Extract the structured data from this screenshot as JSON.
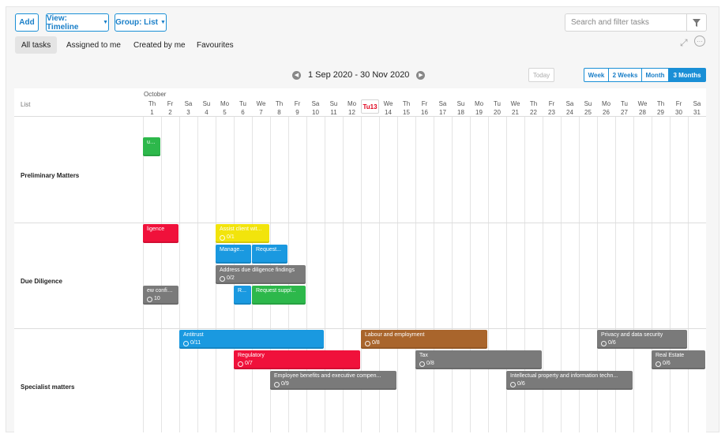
{
  "toolbar": {
    "add_label": "Add",
    "view_label": "View: Timeline",
    "group_label": "Group: List",
    "search_placeholder": "Search and filter tasks"
  },
  "tabs": [
    {
      "label": "All tasks",
      "active": true
    },
    {
      "label": "Assigned to me",
      "active": false
    },
    {
      "label": "Created by me",
      "active": false
    },
    {
      "label": "Favourites",
      "active": false
    }
  ],
  "nav": {
    "date_range": "1 Sep 2020 - 30 Nov 2020",
    "today_label": "Today",
    "ranges": [
      {
        "label": "Week",
        "active": false
      },
      {
        "label": "2 Weeks",
        "active": false
      },
      {
        "label": "Month",
        "active": false
      },
      {
        "label": "3 Months",
        "active": true
      }
    ]
  },
  "timeline": {
    "list_header": "List",
    "month_label": "October",
    "days": [
      {
        "dow": "Th",
        "num": "1"
      },
      {
        "dow": "Fr",
        "num": "2"
      },
      {
        "dow": "Sa",
        "num": "3"
      },
      {
        "dow": "Su",
        "num": "4"
      },
      {
        "dow": "Mo",
        "num": "5"
      },
      {
        "dow": "Tu",
        "num": "6"
      },
      {
        "dow": "We",
        "num": "7"
      },
      {
        "dow": "Th",
        "num": "8"
      },
      {
        "dow": "Fr",
        "num": "9"
      },
      {
        "dow": "Sa",
        "num": "10"
      },
      {
        "dow": "Su",
        "num": "11"
      },
      {
        "dow": "Mo",
        "num": "12"
      },
      {
        "dow": "Tu",
        "num": "13",
        "today": true
      },
      {
        "dow": "We",
        "num": "14"
      },
      {
        "dow": "Th",
        "num": "15"
      },
      {
        "dow": "Fr",
        "num": "16"
      },
      {
        "dow": "Sa",
        "num": "17"
      },
      {
        "dow": "Su",
        "num": "18"
      },
      {
        "dow": "Mo",
        "num": "19"
      },
      {
        "dow": "Tu",
        "num": "20"
      },
      {
        "dow": "We",
        "num": "21"
      },
      {
        "dow": "Th",
        "num": "22"
      },
      {
        "dow": "Fr",
        "num": "23"
      },
      {
        "dow": "Sa",
        "num": "24"
      },
      {
        "dow": "Su",
        "num": "25"
      },
      {
        "dow": "Mo",
        "num": "26"
      },
      {
        "dow": "Tu",
        "num": "27"
      },
      {
        "dow": "We",
        "num": "28"
      },
      {
        "dow": "Th",
        "num": "29"
      },
      {
        "dow": "Fr",
        "num": "30"
      },
      {
        "dow": "Sa",
        "num": "31"
      }
    ],
    "groups": [
      {
        "label": "Preliminary Matters",
        "tasks": [
          {
            "title": "usiv...",
            "count": "",
            "color": "#2db84b",
            "start": 0,
            "end": 1,
            "lane": 0
          }
        ]
      },
      {
        "label": "Due Diligence",
        "tasks": [
          {
            "title": "ligence",
            "count": "",
            "color": "#f0113b",
            "start": 0,
            "end": 2,
            "lane": 0
          },
          {
            "title": "Assist client wit...",
            "count": "0/1",
            "color": "#f2e40c",
            "start": 4,
            "end": 7,
            "lane": 0
          },
          {
            "title": "Manage...",
            "count": "",
            "color": "#1a99e0",
            "start": 4,
            "end": 6,
            "lane": 1
          },
          {
            "title": "Request...",
            "count": "",
            "color": "#1a99e0",
            "start": 6,
            "end": 8,
            "lane": 1
          },
          {
            "title": "Address due diligence findings",
            "count": "0/2",
            "color": "#7a7a7a",
            "start": 4,
            "end": 9,
            "lane": 2
          },
          {
            "title": "ew confide...",
            "count": "10",
            "color": "#7a7a7a",
            "start": 0,
            "end": 2,
            "lane": 3
          },
          {
            "title": "R...",
            "count": "",
            "color": "#1a99e0",
            "start": 5,
            "end": 6,
            "lane": 3
          },
          {
            "title": "Request suppl...",
            "count": "",
            "color": "#2db84b",
            "start": 6,
            "end": 9,
            "lane": 3
          }
        ]
      },
      {
        "label": "Specialist matters",
        "tasks": [
          {
            "title": "Antitrust",
            "count": "0/11",
            "color": "#1a99e0",
            "start": 2,
            "end": 10,
            "lane": 0
          },
          {
            "title": "Labour and employment",
            "count": "0/8",
            "color": "#a9652c",
            "start": 12,
            "end": 19,
            "lane": 0
          },
          {
            "title": "Privacy and data security",
            "count": "0/6",
            "color": "#7a7a7a",
            "start": 25,
            "end": 30,
            "lane": 0
          },
          {
            "title": "Regulatory",
            "count": "0/7",
            "color": "#f0113b",
            "start": 5,
            "end": 12,
            "lane": 1
          },
          {
            "title": "Tax",
            "count": "0/8",
            "color": "#7a7a7a",
            "start": 15,
            "end": 22,
            "lane": 1
          },
          {
            "title": "Real Estate",
            "count": "0/6",
            "color": "#7a7a7a",
            "start": 28,
            "end": 31,
            "lane": 1
          },
          {
            "title": "Employee benefits and executive compen...",
            "count": "0/9",
            "color": "#7a7a7a",
            "start": 7,
            "end": 14,
            "lane": 2
          },
          {
            "title": "Intellectual property and information techn...",
            "count": "0/6",
            "color": "#7a7a7a",
            "start": 20,
            "end": 27,
            "lane": 2
          }
        ]
      }
    ]
  },
  "colors": {
    "accent": "#1a8fd6",
    "today": "#e0001b"
  },
  "icons": [
    "filter-icon",
    "expand-icon",
    "more-options-icon",
    "prev-arrow-icon",
    "next-arrow-icon",
    "check-circle-icon"
  ]
}
